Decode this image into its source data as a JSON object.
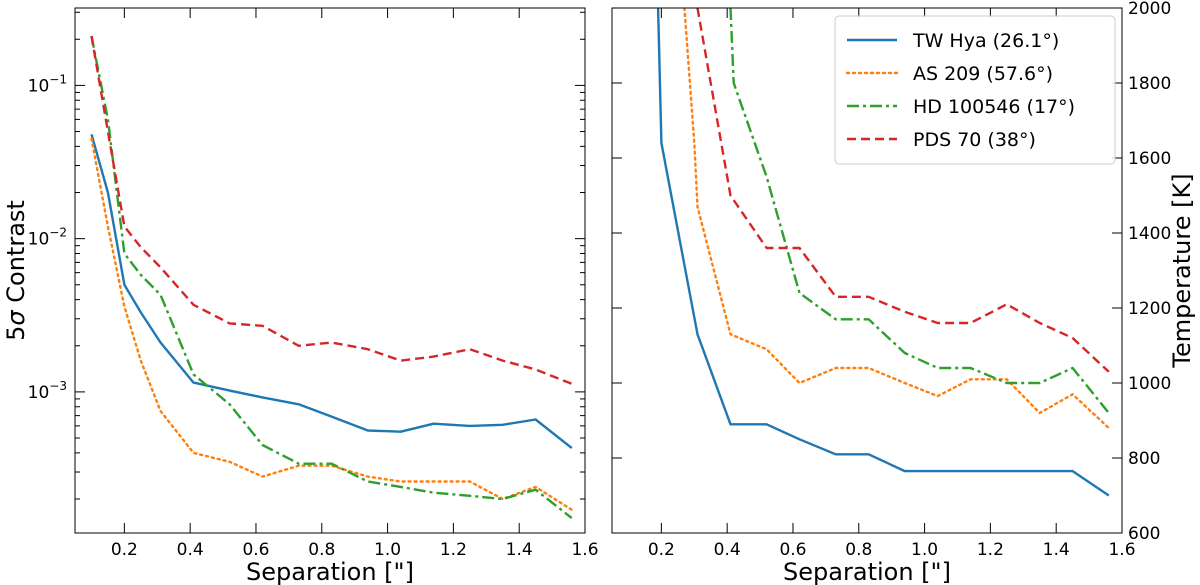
{
  "chart_data": [
    {
      "type": "line",
      "name": "contrast-panel",
      "xlabel": "Separation [\"]",
      "ylabel": "5σ Contrast",
      "yscale": "log",
      "xlim": [
        0.05,
        1.6
      ],
      "ylim": [
        0.00012,
        0.32
      ],
      "xticks": [
        0.2,
        0.4,
        0.6,
        0.8,
        1.0,
        1.2,
        1.4,
        1.6
      ],
      "xticklabels": [
        "0.2",
        "0.4",
        "0.6",
        "0.8",
        "1.0",
        "1.2",
        "1.4",
        "1.6"
      ],
      "yticks": [
        0.1,
        0.01,
        0.001
      ],
      "yticklabels": [
        {
          "base": "10",
          "exp": "−1"
        },
        {
          "base": "10",
          "exp": "−2"
        },
        {
          "base": "10",
          "exp": "−3"
        }
      ],
      "series": [
        {
          "name": "TW Hya (26.1°)",
          "color": "#1f77b4",
          "dash": "solid",
          "x": [
            0.1,
            0.15,
            0.2,
            0.25,
            0.31,
            0.41,
            0.52,
            0.62,
            0.73,
            0.83,
            0.94,
            1.04,
            1.14,
            1.25,
            1.35,
            1.45,
            1.56
          ],
          "y": [
            0.048,
            0.02,
            0.005,
            0.0033,
            0.0021,
            0.00115,
            0.00102,
            0.00092,
            0.00083,
            0.00069,
            0.00056,
            0.00055,
            0.00062,
            0.0006,
            0.00061,
            0.00066,
            0.00043
          ]
        },
        {
          "name": "AS 209 (57.6°)",
          "color": "#ff7f0e",
          "dash": "dotted",
          "x": [
            0.1,
            0.15,
            0.2,
            0.25,
            0.31,
            0.41,
            0.52,
            0.62,
            0.73,
            0.83,
            0.94,
            1.04,
            1.14,
            1.25,
            1.35,
            1.45,
            1.56
          ],
          "y": [
            0.045,
            0.012,
            0.0036,
            0.0016,
            0.00075,
            0.0004,
            0.00035,
            0.00028,
            0.00033,
            0.00033,
            0.00028,
            0.00026,
            0.00026,
            0.00026,
            0.0002,
            0.00024,
            0.00017
          ]
        },
        {
          "name": "HD 100546 (17°)",
          "color": "#2ca02c",
          "dash": "dashdot",
          "x": [
            0.1,
            0.15,
            0.2,
            0.25,
            0.31,
            0.41,
            0.52,
            0.62,
            0.73,
            0.83,
            0.94,
            1.04,
            1.14,
            1.25,
            1.35,
            1.45,
            1.56
          ],
          "y": [
            0.21,
            0.06,
            0.008,
            0.0058,
            0.0043,
            0.0013,
            0.00083,
            0.00045,
            0.00034,
            0.00034,
            0.00026,
            0.00024,
            0.00022,
            0.00021,
            0.0002,
            0.00023,
            0.00015
          ]
        },
        {
          "name": "PDS 70 (38°)",
          "color": "#d62728",
          "dash": "dashed",
          "x": [
            0.1,
            0.15,
            0.2,
            0.25,
            0.31,
            0.41,
            0.52,
            0.62,
            0.73,
            0.83,
            0.94,
            1.04,
            1.14,
            1.25,
            1.35,
            1.45,
            1.56
          ],
          "y": [
            0.21,
            0.05,
            0.012,
            0.0088,
            0.0065,
            0.0037,
            0.0028,
            0.0027,
            0.002,
            0.0021,
            0.0019,
            0.0016,
            0.0017,
            0.0019,
            0.0016,
            0.0014,
            0.00113
          ]
        }
      ]
    },
    {
      "type": "line",
      "name": "temperature-panel",
      "xlabel": "Separation [\"]",
      "ylabel": "Temperature [K]",
      "yscale": "linear",
      "xlim": [
        0.05,
        1.6
      ],
      "ylim": [
        600,
        2000
      ],
      "xticks": [
        0.2,
        0.4,
        0.6,
        0.8,
        1.0,
        1.2,
        1.4,
        1.6
      ],
      "xticklabels": [
        "0.2",
        "0.4",
        "0.6",
        "0.8",
        "1.0",
        "1.2",
        "1.4",
        "1.6"
      ],
      "yticks": [
        600,
        800,
        1000,
        1200,
        1400,
        1600,
        1800,
        2000
      ],
      "yticklabels": [
        "600",
        "800",
        "1000",
        "1200",
        "1400",
        "1600",
        "1800",
        "2000"
      ],
      "legend": {
        "position": "upper-right"
      },
      "series": [
        {
          "name": "TW Hya (26.1°)",
          "color": "#1f77b4",
          "dash": "solid",
          "x": [
            0.19,
            0.2,
            0.31,
            0.41,
            0.52,
            0.62,
            0.73,
            0.83,
            0.94,
            1.04,
            1.14,
            1.25,
            1.35,
            1.45,
            1.56
          ],
          "y": [
            2000,
            1640,
            1130,
            890,
            890,
            850,
            810,
            810,
            765,
            765,
            765,
            765,
            765,
            765,
            700
          ]
        },
        {
          "name": "AS 209 (57.6°)",
          "color": "#ff7f0e",
          "dash": "dotted",
          "x": [
            0.27,
            0.3,
            0.31,
            0.41,
            0.52,
            0.62,
            0.73,
            0.83,
            0.94,
            1.04,
            1.14,
            1.25,
            1.35,
            1.45,
            1.56
          ],
          "y": [
            2000,
            1640,
            1470,
            1130,
            1090,
            1000,
            1040,
            1040,
            1000,
            965,
            1010,
            1010,
            920,
            970,
            880
          ]
        },
        {
          "name": "HD 100546 (17°)",
          "color": "#2ca02c",
          "dash": "dashdot",
          "x": [
            0.41,
            0.42,
            0.52,
            0.62,
            0.73,
            0.83,
            0.94,
            1.04,
            1.14,
            1.25,
            1.35,
            1.45,
            1.56
          ],
          "y": [
            2000,
            1800,
            1550,
            1240,
            1170,
            1170,
            1080,
            1040,
            1040,
            1000,
            1000,
            1040,
            920
          ]
        },
        {
          "name": "PDS 70 (38°)",
          "color": "#d62728",
          "dash": "dashed",
          "x": [
            0.31,
            0.41,
            0.52,
            0.62,
            0.73,
            0.83,
            0.94,
            1.04,
            1.14,
            1.25,
            1.35,
            1.45,
            1.56
          ],
          "y": [
            2000,
            1500,
            1360,
            1360,
            1230,
            1230,
            1190,
            1160,
            1160,
            1210,
            1160,
            1120,
            1030
          ]
        }
      ]
    }
  ]
}
